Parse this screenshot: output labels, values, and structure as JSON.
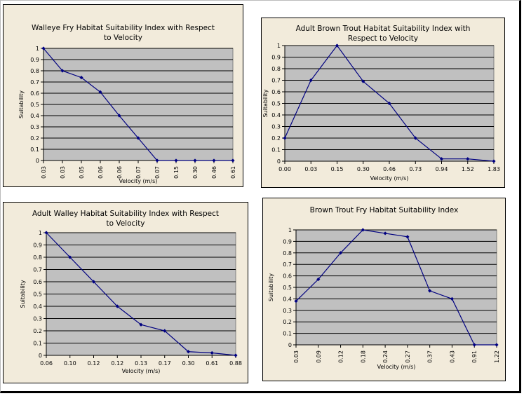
{
  "chart_data": [
    {
      "type": "line",
      "title_lines": [
        "Walleye Fry Habitat Suitability Index with Respect",
        "to Velocity"
      ],
      "xlabel": "Velocity (m/s)",
      "ylabel": "Suitability",
      "ylim": [
        0,
        1
      ],
      "yticks": [
        "0",
        "0.1",
        "0.2",
        "0.3",
        "0.4",
        "0.5",
        "0.6",
        "0.7",
        "0.8",
        "0.9",
        "1"
      ],
      "categories": [
        "0.03",
        "0.03",
        "0.05",
        "0.06",
        "0.06",
        "0.07",
        "0.07",
        "0.15",
        "0.30",
        "0.46",
        "0.61"
      ],
      "values": [
        1.0,
        0.8,
        0.74,
        0.61,
        0.4,
        0.2,
        0.0,
        0.0,
        0.0,
        0.0,
        0.0
      ],
      "xtick_rotated": true
    },
    {
      "type": "line",
      "title_lines": [
        "Adult Brown Trout Habitat Suitability Index with",
        "Respect to Velocity"
      ],
      "xlabel": "Velocity (m/s)",
      "ylabel": "Suitability",
      "ylim": [
        0,
        1
      ],
      "yticks": [
        "0",
        "0.1",
        "0.2",
        "0.3",
        "0.4",
        "0.5",
        "0.6",
        "0.7",
        "0.8",
        "0.9",
        "1"
      ],
      "categories": [
        "0.00",
        "0.03",
        "0.15",
        "0.30",
        "0.46",
        "0.73",
        "0.94",
        "1.52",
        "1.83"
      ],
      "values": [
        0.2,
        0.7,
        1.0,
        0.69,
        0.5,
        0.2,
        0.02,
        0.02,
        0.0
      ],
      "xtick_rotated": false
    },
    {
      "type": "line",
      "title_lines": [
        "Adult Walley Habitat Suitability Index with Respect",
        "to Velocity"
      ],
      "xlabel": "Velocity (m/s)",
      "ylabel": "Suitability",
      "ylim": [
        0,
        1
      ],
      "yticks": [
        "0",
        "0.1",
        "0.2",
        "0.3",
        "0.4",
        "0.5",
        "0.6",
        "0.7",
        "0.8",
        "0.9",
        "1"
      ],
      "categories": [
        "0.06",
        "0.10",
        "0.12",
        "0.12",
        "0.13",
        "0.17",
        "0.30",
        "0.61",
        "0.88"
      ],
      "values": [
        1.0,
        0.8,
        0.6,
        0.4,
        0.25,
        0.2,
        0.03,
        0.02,
        0.0
      ],
      "xtick_rotated": false
    },
    {
      "type": "line",
      "title_lines": [
        "Brown Trout Fry  Habitat Suitability Index"
      ],
      "xlabel": "Velocity (m/s)",
      "ylabel": "Suitability",
      "ylim": [
        0,
        1
      ],
      "yticks": [
        "0",
        "0.1",
        "0.2",
        "0.3",
        "0.4",
        "0.5",
        "0.6",
        "0.7",
        "0.8",
        "0.9",
        "1"
      ],
      "categories": [
        "0.03",
        "0.09",
        "0.12",
        "0.18",
        "0.24",
        "0.27",
        "0.37",
        "0.43",
        "0.91",
        "1.22"
      ],
      "values": [
        0.38,
        0.57,
        0.8,
        1.0,
        0.97,
        0.94,
        0.47,
        0.4,
        0.0,
        0.0
      ],
      "xtick_rotated": true
    }
  ]
}
